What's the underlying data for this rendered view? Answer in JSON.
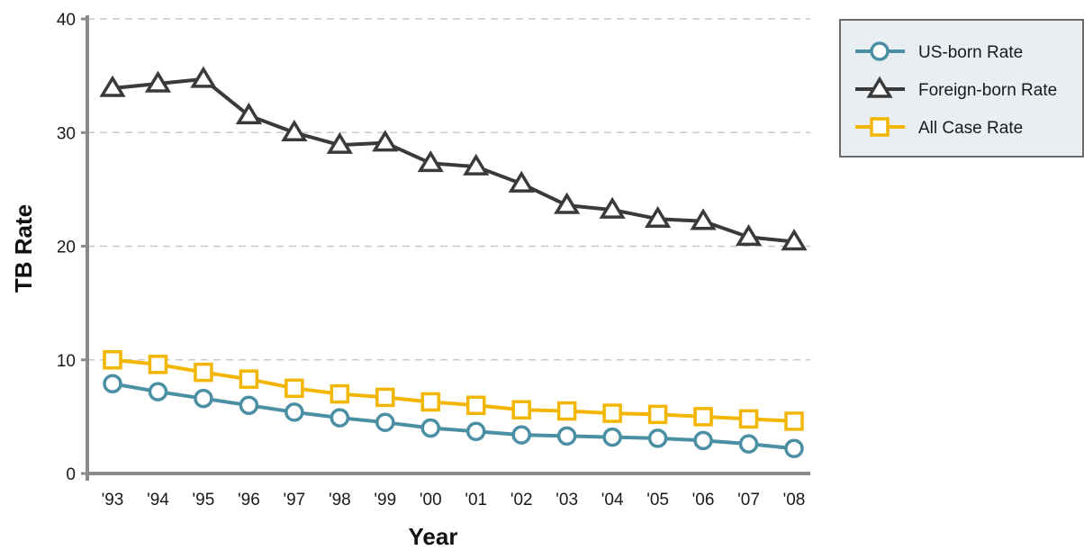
{
  "chart_data": {
    "type": "line",
    "xlabel": "Year",
    "ylabel": "TB Rate",
    "ylim": [
      0,
      40
    ],
    "yticks": [
      0,
      10,
      20,
      30,
      40
    ],
    "grid": "horizontal dashed",
    "legend_position": "top-right",
    "categories": [
      "'93",
      "'94",
      "'95",
      "'96",
      "'97",
      "'98",
      "'99",
      "'00",
      "'01",
      "'02",
      "'03",
      "'04",
      "'05",
      "'06",
      "'07",
      "'08"
    ],
    "series": [
      {
        "name": "US-born Rate",
        "marker": "circle",
        "color": "#4a8fa3",
        "values": [
          7.9,
          7.2,
          6.6,
          6.0,
          5.4,
          4.9,
          4.5,
          4.0,
          3.7,
          3.4,
          3.3,
          3.2,
          3.1,
          2.9,
          2.6,
          2.2
        ]
      },
      {
        "name": "Foreign-born Rate",
        "marker": "triangle",
        "color": "#3a3a3a",
        "values": [
          33.9,
          34.3,
          34.7,
          31.5,
          30.0,
          28.9,
          29.1,
          27.3,
          27.0,
          25.5,
          23.6,
          23.2,
          22.4,
          22.2,
          20.8,
          20.4
        ]
      },
      {
        "name": "All Case Rate",
        "marker": "square",
        "color": "#f2b600",
        "values": [
          10.0,
          9.6,
          8.9,
          8.3,
          7.5,
          7.0,
          6.7,
          6.3,
          6.0,
          5.6,
          5.5,
          5.3,
          5.2,
          5.0,
          4.8,
          4.6
        ]
      }
    ]
  }
}
